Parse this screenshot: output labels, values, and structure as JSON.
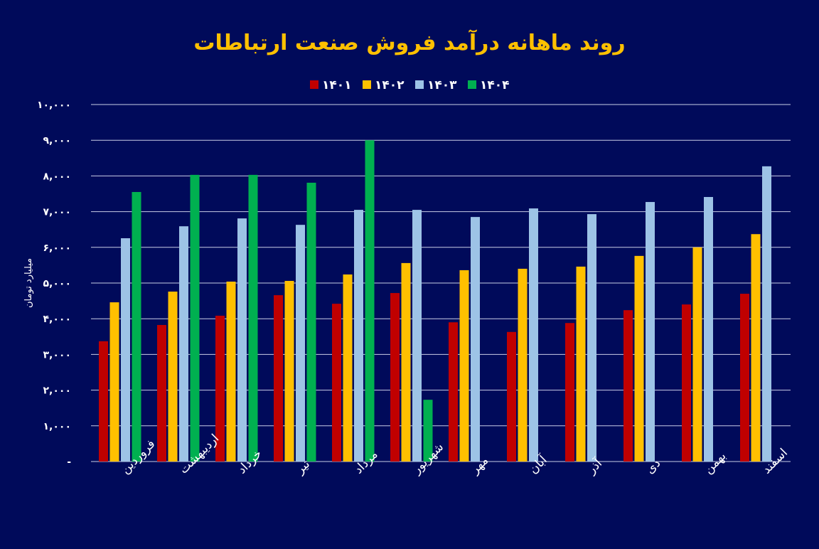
{
  "chart_data": {
    "type": "bar",
    "title": "روند ماهانه درآمد فروش صنعت ارتباطات",
    "ylabel": "میلیارد تومان",
    "xlabel": "",
    "ylim": [
      0,
      10000
    ],
    "yticks": [
      0,
      1000,
      2000,
      3000,
      4000,
      5000,
      6000,
      7000,
      8000,
      9000,
      10000
    ],
    "ytick_labels": [
      "-",
      "۱,۰۰۰",
      "۲,۰۰۰",
      "۳,۰۰۰",
      "۴,۰۰۰",
      "۵,۰۰۰",
      "۶,۰۰۰",
      "۷,۰۰۰",
      "۸,۰۰۰",
      "۹,۰۰۰",
      "۱۰,۰۰۰"
    ],
    "grid": true,
    "legend_position": "top-center",
    "categories": [
      "فروردین",
      "اردیبهشت",
      "خرداد",
      "تیر",
      "مرداد",
      "شهریور",
      "مهر",
      "آبان",
      "آذر",
      "دی",
      "بهمن",
      "اسفند"
    ],
    "series": [
      {
        "name": "۱۴۰۱",
        "color": "#c00000",
        "values": [
          3370,
          3825,
          4085,
          4660,
          4420,
          4720,
          3900,
          3630,
          3880,
          4240,
          4400,
          4700
        ]
      },
      {
        "name": "۱۴۰۲",
        "color": "#ffc000",
        "values": [
          4460,
          4760,
          5040,
          5060,
          5240,
          5560,
          5360,
          5400,
          5460,
          5760,
          6000,
          6370
        ]
      },
      {
        "name": "۱۴۰۳",
        "color": "#9dc3e6",
        "values": [
          6255,
          6590,
          6810,
          6630,
          7050,
          7050,
          6850,
          7090,
          6930,
          7270,
          7410,
          8270
        ]
      },
      {
        "name": "۱۴۰۴",
        "color": "#00b050",
        "values": [
          7550,
          8030,
          8030,
          7810,
          9000,
          1730,
          null,
          null,
          null,
          null,
          null,
          null
        ]
      }
    ]
  },
  "colors": {
    "background": "#000a5a",
    "title": "#ffc000",
    "text": "#ffffff",
    "grid": "#c9cde6"
  }
}
